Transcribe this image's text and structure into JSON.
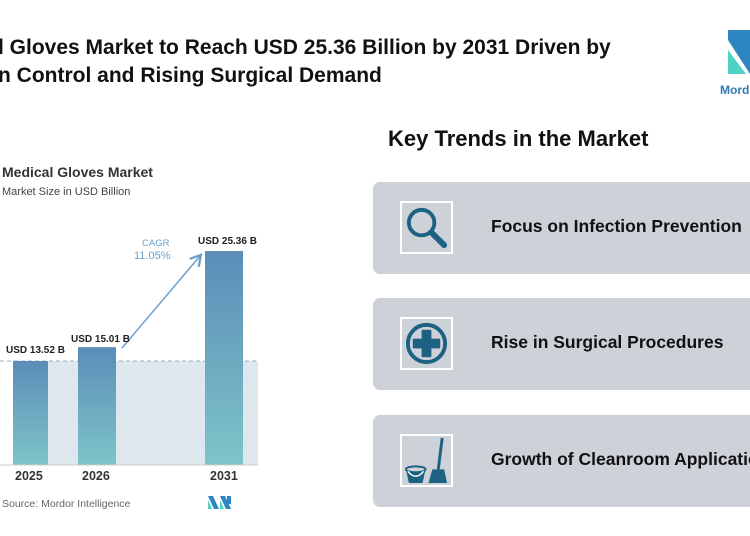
{
  "header": {
    "title_line1": "l Gloves Market to Reach USD 25.36 Billion by 2031 Driven by",
    "title_line2": "n Control and Rising Surgical Demand",
    "logo_text": "Mord"
  },
  "chart_data": {
    "type": "bar",
    "title": "Medical Gloves Market",
    "subtitle": "Market Size in USD Billion",
    "categories": [
      "2025",
      "2026",
      "2031"
    ],
    "values": [
      13.52,
      15.01,
      25.36
    ],
    "data_labels": [
      "USD 13.52 B",
      "USD 15.01 B",
      "USD 25.36 B"
    ],
    "annotation": {
      "label": "CAGR",
      "value": "11.05%"
    },
    "source": "Source: Mordor Intelligence",
    "colors": {
      "bar_top": "#5b8db8",
      "bar_bottom": "#7ec4c8",
      "annotation": "#6a9fcc"
    }
  },
  "trends": {
    "heading": "Key Trends in the Market",
    "items": [
      {
        "label": "Focus on Infection Prevention",
        "icon": "magnifier-icon"
      },
      {
        "label": "Rise in Surgical Procedures",
        "icon": "medical-cross-icon"
      },
      {
        "label": "Growth of Cleanroom Applications",
        "icon": "bucket-mop-icon"
      }
    ]
  },
  "colors": {
    "card_bg": "#cdd1d8",
    "icon": "#1e6283",
    "logo_blue": "#2e86c1",
    "logo_teal": "#4fd1c5"
  }
}
